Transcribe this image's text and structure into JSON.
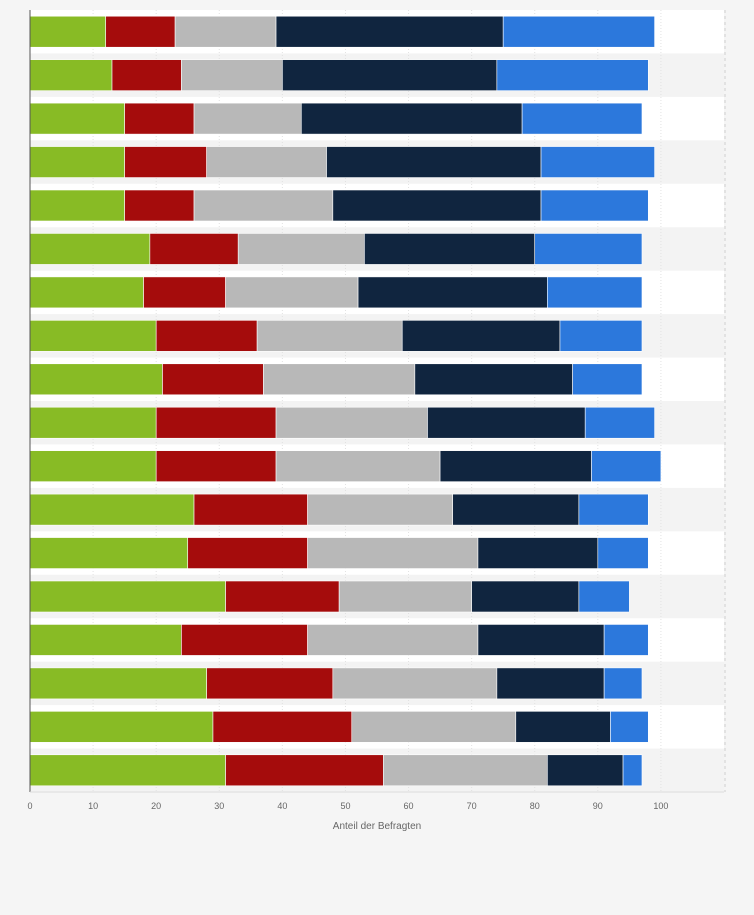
{
  "chart_data": {
    "type": "bar",
    "orientation": "horizontal",
    "stacked": true,
    "xlabel": "Anteil der Befragten",
    "xlim": [
      0,
      110
    ],
    "xticks": [
      "0",
      "10",
      "20",
      "30",
      "40",
      "50",
      "60",
      "70",
      "80",
      "90",
      "100"
    ],
    "grid": true,
    "colors": [
      "#88bb25",
      "#a50c0c",
      "#b8b8b8",
      "#10253f",
      "#2c78dc"
    ],
    "series": [
      {
        "values": [
          12,
          13,
          15,
          15,
          15,
          19,
          18,
          20,
          21,
          20,
          20,
          26,
          25,
          31,
          24,
          28,
          29,
          31
        ]
      },
      {
        "values": [
          11,
          11,
          11,
          13,
          11,
          14,
          13,
          16,
          16,
          19,
          19,
          18,
          19,
          18,
          20,
          20,
          22,
          25
        ]
      },
      {
        "values": [
          16,
          16,
          17,
          19,
          22,
          20,
          21,
          23,
          24,
          24,
          26,
          23,
          27,
          21,
          27,
          26,
          26,
          26
        ]
      },
      {
        "values": [
          36,
          34,
          35,
          34,
          33,
          27,
          30,
          25,
          25,
          25,
          24,
          20,
          19,
          17,
          20,
          17,
          15,
          12
        ]
      },
      {
        "values": [
          24,
          24,
          19,
          18,
          17,
          17,
          15,
          13,
          11,
          11,
          11,
          11,
          8,
          8,
          7,
          6,
          6,
          3
        ]
      }
    ]
  }
}
